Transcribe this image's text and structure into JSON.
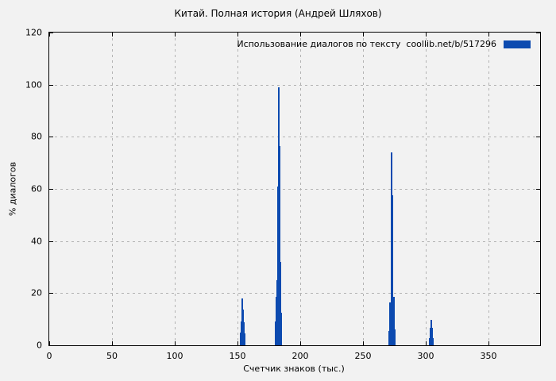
{
  "title": "Китай. Полная история (Андрей Шляхов)",
  "colors": {
    "background": "#f2f2f2",
    "bar": "#0c4ab0",
    "grid": "#b3b3b3",
    "axis": "#000000"
  },
  "chart_data": {
    "type": "bar",
    "title": "Китай. Полная история (Андрей Шляхов)",
    "legend": {
      "label": "Использование диалогов по тексту  coollib.net/b/517296",
      "position": "top-right-inside",
      "swatch_color": "#0c4ab0"
    },
    "xlabel": "Счетчик знаков (тыс.)",
    "ylabel": "% диалогов",
    "xlim": [
      0,
      391
    ],
    "ylim": [
      0,
      120
    ],
    "xticks": [
      0,
      50,
      100,
      150,
      200,
      250,
      300,
      350
    ],
    "yticks": [
      0,
      20,
      40,
      60,
      80,
      100,
      120
    ],
    "grid": "dashed",
    "bar_style": "impulses",
    "points": [
      {
        "x": 152.5,
        "y": 4.8
      },
      {
        "x": 153.2,
        "y": 9.0
      },
      {
        "x": 153.8,
        "y": 18.0
      },
      {
        "x": 154.4,
        "y": 13.8
      },
      {
        "x": 155.1,
        "y": 8.9
      },
      {
        "x": 155.8,
        "y": 4.7
      },
      {
        "x": 180.1,
        "y": 9.0
      },
      {
        "x": 180.8,
        "y": 18.5
      },
      {
        "x": 181.5,
        "y": 25.0
      },
      {
        "x": 182.1,
        "y": 61.0
      },
      {
        "x": 182.7,
        "y": 99.0
      },
      {
        "x": 183.3,
        "y": 76.5
      },
      {
        "x": 183.9,
        "y": 32.0
      },
      {
        "x": 184.5,
        "y": 12.5
      },
      {
        "x": 271.0,
        "y": 5.5
      },
      {
        "x": 271.7,
        "y": 16.5
      },
      {
        "x": 272.4,
        "y": 35.0
      },
      {
        "x": 273.0,
        "y": 74.0
      },
      {
        "x": 273.6,
        "y": 57.5
      },
      {
        "x": 274.3,
        "y": 18.5
      },
      {
        "x": 275.0,
        "y": 6.0
      },
      {
        "x": 302.8,
        "y": 2.7
      },
      {
        "x": 303.5,
        "y": 6.8
      },
      {
        "x": 304.2,
        "y": 9.7
      },
      {
        "x": 304.9,
        "y": 6.8
      },
      {
        "x": 305.6,
        "y": 2.7
      }
    ]
  }
}
